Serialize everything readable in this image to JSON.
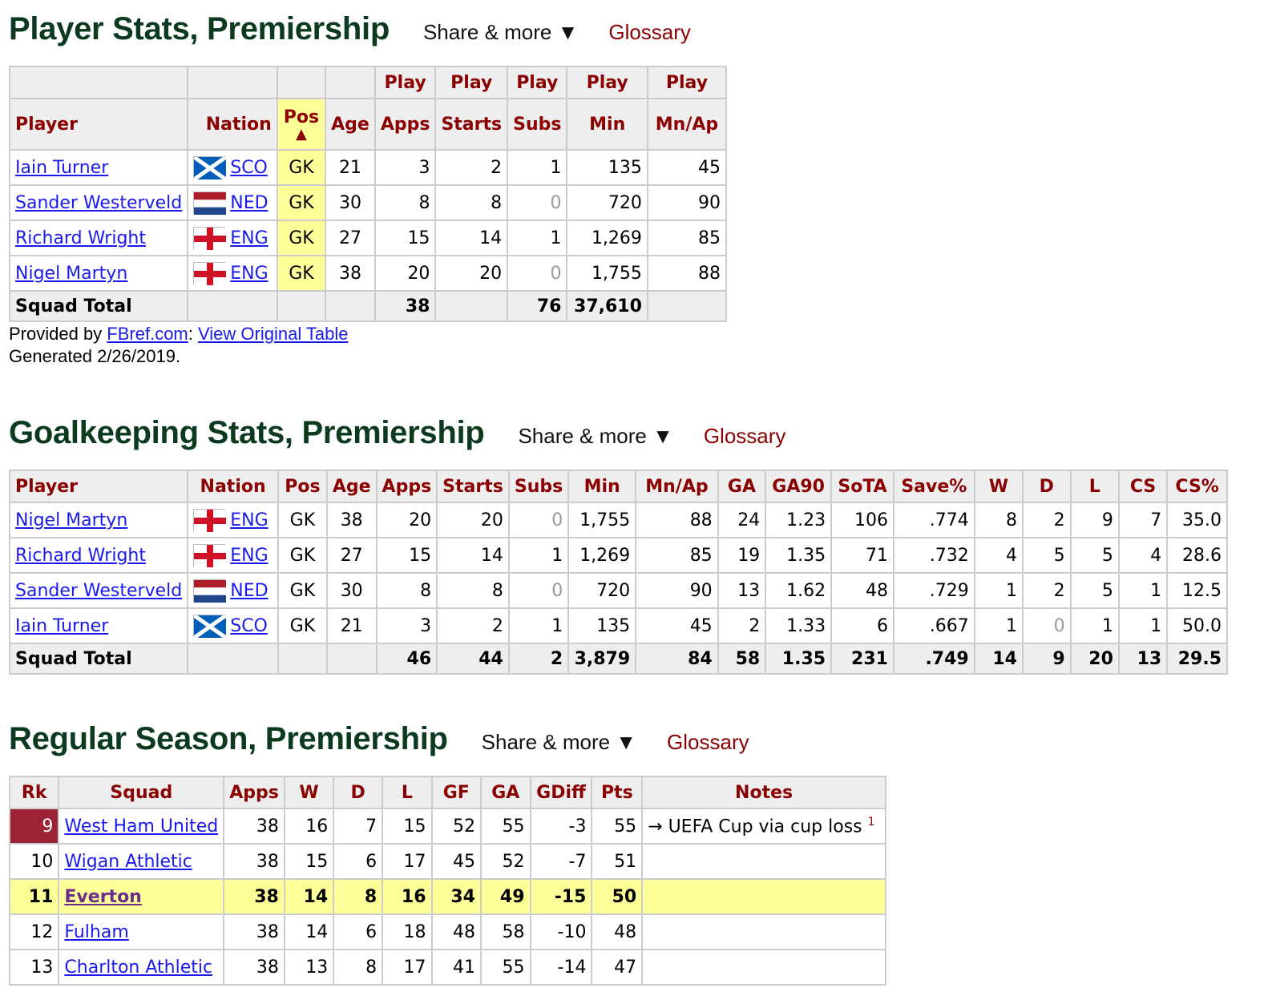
{
  "player_stats": {
    "title": "Player Stats, Premiership",
    "share_label": "Share & more ▼",
    "glossary_label": "Glossary",
    "group_labels": [
      "Play",
      "Play",
      "Play",
      "Play",
      "Play"
    ],
    "columns": [
      "Player",
      "Nation",
      "Pos",
      "Age",
      "Apps",
      "Starts",
      "Subs",
      "Min",
      "Mn/Ap"
    ],
    "sort_arrow": "▲",
    "rows": [
      {
        "player": "Iain Turner",
        "flag": "scotland",
        "nation": "SCO",
        "pos": "GK",
        "age": "21",
        "apps": "3",
        "starts": "2",
        "subs": "1",
        "min": "135",
        "mnap": "45"
      },
      {
        "player": "Sander Westerveld",
        "flag": "netherlands",
        "nation": "NED",
        "pos": "GK",
        "age": "30",
        "apps": "8",
        "starts": "8",
        "subs": "0",
        "min": "720",
        "mnap": "90"
      },
      {
        "player": "Richard Wright",
        "flag": "england",
        "nation": "ENG",
        "pos": "GK",
        "age": "27",
        "apps": "15",
        "starts": "14",
        "subs": "1",
        "min": "1,269",
        "mnap": "85"
      },
      {
        "player": "Nigel Martyn",
        "flag": "england",
        "nation": "ENG",
        "pos": "GK",
        "age": "38",
        "apps": "20",
        "starts": "20",
        "subs": "0",
        "min": "1,755",
        "mnap": "88"
      }
    ],
    "total": {
      "label": "Squad Total",
      "apps": "38",
      "subs": "76",
      "min": "37,610"
    },
    "provided_prefix": "Provided by ",
    "provided_link": "FBref.com",
    "provided_sep": ": ",
    "view_link": "View Original Table",
    "generated": "Generated 2/26/2019."
  },
  "goalkeeping": {
    "title": "Goalkeeping Stats, Premiership",
    "share_label": "Share & more ▼",
    "glossary_label": "Glossary",
    "columns": [
      "Player",
      "Nation",
      "Pos",
      "Age",
      "Apps",
      "Starts",
      "Subs",
      "Min",
      "Mn/Ap",
      "GA",
      "GA90",
      "SoTA",
      "Save%",
      "W",
      "D",
      "L",
      "CS",
      "CS%"
    ],
    "rows": [
      {
        "player": "Nigel Martyn",
        "flag": "england",
        "nation": "ENG",
        "pos": "GK",
        "age": "38",
        "apps": "20",
        "starts": "20",
        "subs": "0",
        "min": "1,755",
        "mnap": "88",
        "ga": "24",
        "ga90": "1.23",
        "sota": "106",
        "save": ".774",
        "w": "8",
        "d": "2",
        "l": "9",
        "cs": "7",
        "csp": "35.0"
      },
      {
        "player": "Richard Wright",
        "flag": "england",
        "nation": "ENG",
        "pos": "GK",
        "age": "27",
        "apps": "15",
        "starts": "14",
        "subs": "1",
        "min": "1,269",
        "mnap": "85",
        "ga": "19",
        "ga90": "1.35",
        "sota": "71",
        "save": ".732",
        "w": "4",
        "d": "5",
        "l": "5",
        "cs": "4",
        "csp": "28.6"
      },
      {
        "player": "Sander Westerveld",
        "flag": "netherlands",
        "nation": "NED",
        "pos": "GK",
        "age": "30",
        "apps": "8",
        "starts": "8",
        "subs": "0",
        "min": "720",
        "mnap": "90",
        "ga": "13",
        "ga90": "1.62",
        "sota": "48",
        "save": ".729",
        "w": "1",
        "d": "2",
        "l": "5",
        "cs": "1",
        "csp": "12.5"
      },
      {
        "player": "Iain Turner",
        "flag": "scotland",
        "nation": "SCO",
        "pos": "GK",
        "age": "21",
        "apps": "3",
        "starts": "2",
        "subs": "1",
        "min": "135",
        "mnap": "45",
        "ga": "2",
        "ga90": "1.33",
        "sota": "6",
        "save": ".667",
        "w": "1",
        "d": "0",
        "l": "1",
        "cs": "1",
        "csp": "50.0"
      }
    ],
    "total": {
      "label": "Squad Total",
      "apps": "46",
      "starts": "44",
      "subs": "2",
      "min": "3,879",
      "mnap": "84",
      "ga": "58",
      "ga90": "1.35",
      "sota": "231",
      "save": ".749",
      "w": "14",
      "d": "9",
      "l": "20",
      "cs": "13",
      "csp": "29.5"
    }
  },
  "regular_season": {
    "title": "Regular Season, Premiership",
    "share_label": "Share & more ▼",
    "glossary_label": "Glossary",
    "columns": [
      "Rk",
      "Squad",
      "Apps",
      "W",
      "D",
      "L",
      "GF",
      "GA",
      "GDiff",
      "Pts",
      "Notes"
    ],
    "rows": [
      {
        "rk": "9",
        "squad": "West Ham United",
        "apps": "38",
        "w": "16",
        "d": "7",
        "l": "15",
        "gf": "52",
        "ga": "55",
        "gdiff": "-3",
        "pts": "55",
        "notes": "→ UEFA Cup via cup loss",
        "note_sup": "1"
      },
      {
        "rk": "10",
        "squad": "Wigan Athletic",
        "apps": "38",
        "w": "15",
        "d": "6",
        "l": "17",
        "gf": "45",
        "ga": "52",
        "gdiff": "-7",
        "pts": "51",
        "notes": "",
        "note_sup": ""
      },
      {
        "rk": "11",
        "squad": "Everton",
        "apps": "38",
        "w": "14",
        "d": "8",
        "l": "16",
        "gf": "34",
        "ga": "49",
        "gdiff": "-15",
        "pts": "50",
        "notes": "",
        "note_sup": ""
      },
      {
        "rk": "12",
        "squad": "Fulham",
        "apps": "38",
        "w": "14",
        "d": "6",
        "l": "18",
        "gf": "48",
        "ga": "58",
        "gdiff": "-10",
        "pts": "48",
        "notes": "",
        "note_sup": ""
      },
      {
        "rk": "13",
        "squad": "Charlton Athletic",
        "apps": "38",
        "w": "13",
        "d": "8",
        "l": "17",
        "gf": "41",
        "ga": "55",
        "gdiff": "-14",
        "pts": "47",
        "notes": "",
        "note_sup": ""
      }
    ]
  }
}
